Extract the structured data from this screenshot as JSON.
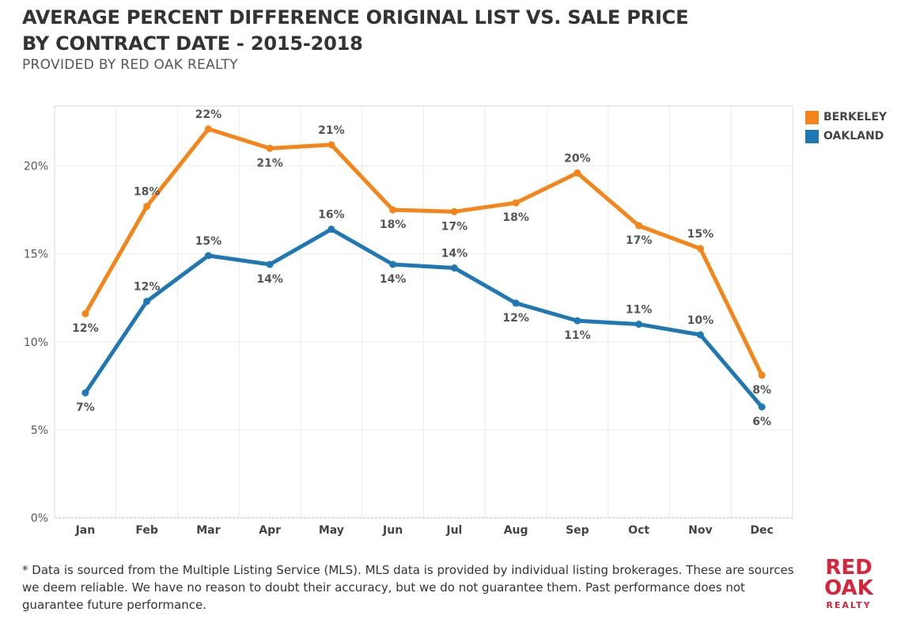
{
  "title_line1": "AVERAGE PERCENT DIFFERENCE ORIGINAL LIST VS. SALE PRICE",
  "title_line2": "BY CONTRACT DATE - 2015-2018",
  "subtitle": "PROVIDED BY RED OAK REALTY",
  "footnote": "* Data is sourced from the Multiple Listing Service (MLS). MLS data is provided by individual listing brokerages. These are sources we deem reliable. We have no reason to doubt their accuracy, but we do not guarantee them. Past performance does not guarantee future performance.",
  "logo": {
    "line1": "RED",
    "line2": "OAK",
    "line3": "REALTY"
  },
  "chart_data": {
    "type": "line",
    "categories": [
      "Jan",
      "Feb",
      "Mar",
      "Apr",
      "May",
      "Jun",
      "Jul",
      "Aug",
      "Sep",
      "Oct",
      "Nov",
      "Dec"
    ],
    "ylim": [
      0,
      23.4
    ],
    "yticks": [
      0,
      5,
      10,
      15,
      20
    ],
    "ytick_labels": [
      "0%",
      "5%",
      "10%",
      "15%",
      "20%"
    ],
    "xlabel": "",
    "ylabel": "",
    "grid": true,
    "legend_position": "right",
    "series": [
      {
        "name": "BERKELEY",
        "color": "#f58518",
        "values": [
          11.6,
          17.7,
          22.1,
          21.0,
          21.2,
          17.5,
          17.4,
          17.9,
          19.6,
          16.6,
          15.3,
          8.1
        ],
        "labels": [
          "12%",
          "18%",
          "22%",
          "21%",
          "21%",
          "18%",
          "17%",
          "18%",
          "20%",
          "17%",
          "15%",
          "8%"
        ],
        "label_pos": [
          "below",
          "above",
          "above",
          "below",
          "above",
          "below",
          "below",
          "below",
          "above",
          "below",
          "above",
          "below"
        ]
      },
      {
        "name": "OAKLAND",
        "color": "#1f77b4",
        "values": [
          7.1,
          12.3,
          14.9,
          14.4,
          16.4,
          14.4,
          14.2,
          12.2,
          11.2,
          11.0,
          10.4,
          6.3
        ],
        "labels": [
          "7%",
          "12%",
          "15%",
          "14%",
          "16%",
          "14%",
          "14%",
          "12%",
          "11%",
          "11%",
          "10%",
          "6%"
        ],
        "label_pos": [
          "below",
          "above",
          "above",
          "below",
          "above",
          "below",
          "above",
          "below",
          "below",
          "above",
          "above",
          "below"
        ]
      }
    ]
  }
}
